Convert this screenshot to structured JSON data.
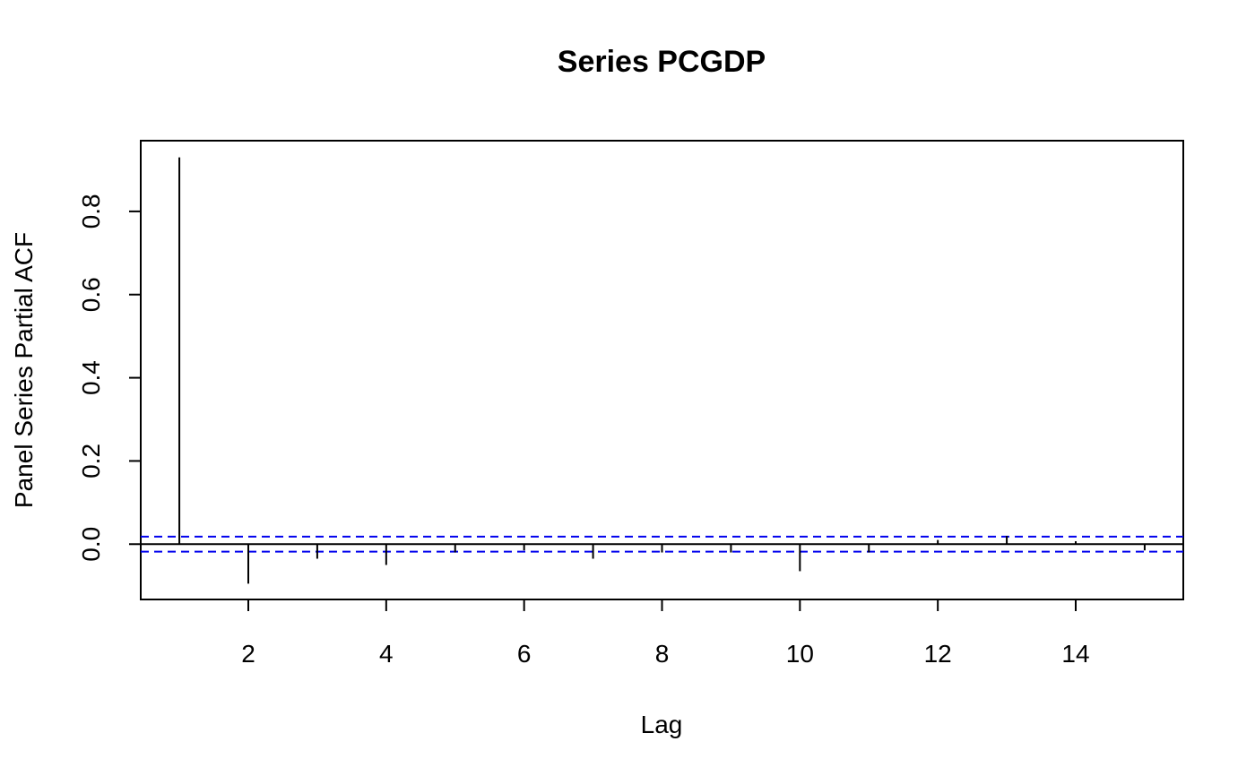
{
  "chart_data": {
    "type": "bar",
    "title": "Series PCGDP",
    "xlabel": "Lag",
    "ylabel": "Panel Series Partial ACF",
    "x": [
      1,
      2,
      3,
      4,
      5,
      6,
      7,
      8,
      9,
      10,
      11,
      12,
      13,
      14,
      15
    ],
    "values": [
      0.93,
      -0.095,
      -0.035,
      -0.05,
      -0.02,
      -0.015,
      -0.035,
      -0.02,
      -0.02,
      -0.065,
      -0.02,
      0.01,
      0.02,
      0.007,
      -0.015
    ],
    "xticks": [
      2,
      4,
      6,
      8,
      10,
      12,
      14
    ],
    "xtick_labels": [
      "2",
      "4",
      "6",
      "8",
      "10",
      "12",
      "14"
    ],
    "yticks": [
      0.0,
      0.2,
      0.4,
      0.6,
      0.8
    ],
    "ytick_labels": [
      "0.0",
      "0.2",
      "0.4",
      "0.6",
      "0.8"
    ],
    "xlim": [
      0.44,
      15.56
    ],
    "ylim": [
      -0.133,
      0.97
    ],
    "confidence_bound": 0.018,
    "zero_line": true,
    "grid": false,
    "colors": {
      "spikes": "#000000",
      "confidence_lines": "#0000ee",
      "axes": "#000000"
    }
  }
}
